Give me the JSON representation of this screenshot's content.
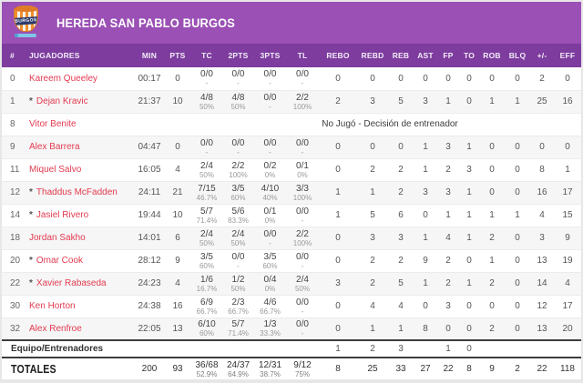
{
  "header": {
    "team_name": "HEREDA SAN PABLO BURGOS",
    "logo_text": "BURGOS",
    "banner_color": "#9b50b5",
    "header_row_color": "#7d3c9e",
    "player_link_color": "#e23a50"
  },
  "table": {
    "columns": [
      "#",
      "JUGADORES",
      "MIN",
      "PTS",
      "TC",
      "2PTS",
      "3PTS",
      "TL",
      "REBO",
      "REBD",
      "REB",
      "AST",
      "FP",
      "TO",
      "ROB",
      "BLQ",
      "+/-",
      "EFF"
    ],
    "players": [
      {
        "number": "0",
        "starter": false,
        "name": "Kareem Queeley",
        "min": "00:17",
        "pts": "0",
        "tc": "0/0",
        "tc_pct": "-",
        "p2": "0/0",
        "p2_pct": "-",
        "p3": "0/0",
        "p3_pct": "-",
        "tl": "0/0",
        "tl_pct": "-",
        "rebo": "0",
        "rebd": "0",
        "reb": "0",
        "ast": "0",
        "fp": "0",
        "to": "0",
        "rob": "0",
        "blq": "0",
        "pm": "2",
        "eff": "0"
      },
      {
        "number": "1",
        "starter": true,
        "name": "Dejan Kravic",
        "min": "21:37",
        "pts": "10",
        "tc": "4/8",
        "tc_pct": "50%",
        "p2": "4/8",
        "p2_pct": "50%",
        "p3": "0/0",
        "p3_pct": "-",
        "tl": "2/2",
        "tl_pct": "100%",
        "rebo": "2",
        "rebd": "3",
        "reb": "5",
        "ast": "3",
        "fp": "1",
        "to": "0",
        "rob": "1",
        "blq": "1",
        "pm": "25",
        "eff": "16"
      },
      {
        "number": "8",
        "starter": false,
        "name": "Vitor Benite",
        "dnp": "No Jugó - Decisión de entrenador"
      },
      {
        "number": "9",
        "starter": false,
        "name": "Alex Barrera",
        "min": "04:47",
        "pts": "0",
        "tc": "0/0",
        "tc_pct": "-",
        "p2": "0/0",
        "p2_pct": "-",
        "p3": "0/0",
        "p3_pct": "-",
        "tl": "0/0",
        "tl_pct": "-",
        "rebo": "0",
        "rebd": "0",
        "reb": "0",
        "ast": "1",
        "fp": "3",
        "to": "1",
        "rob": "0",
        "blq": "0",
        "pm": "0",
        "eff": "0"
      },
      {
        "number": "11",
        "starter": false,
        "name": "Miquel Salvo",
        "min": "16:05",
        "pts": "4",
        "tc": "2/4",
        "tc_pct": "50%",
        "p2": "2/2",
        "p2_pct": "100%",
        "p3": "0/2",
        "p3_pct": "0%",
        "tl": "0/1",
        "tl_pct": "0%",
        "rebo": "0",
        "rebd": "2",
        "reb": "2",
        "ast": "1",
        "fp": "2",
        "to": "3",
        "rob": "0",
        "blq": "0",
        "pm": "8",
        "eff": "1"
      },
      {
        "number": "12",
        "starter": true,
        "name": "Thaddus McFadden",
        "min": "24:11",
        "pts": "21",
        "tc": "7/15",
        "tc_pct": "46.7%",
        "p2": "3/5",
        "p2_pct": "60%",
        "p3": "4/10",
        "p3_pct": "40%",
        "tl": "3/3",
        "tl_pct": "100%",
        "rebo": "1",
        "rebd": "1",
        "reb": "2",
        "ast": "3",
        "fp": "3",
        "to": "1",
        "rob": "0",
        "blq": "0",
        "pm": "16",
        "eff": "17"
      },
      {
        "number": "14",
        "starter": true,
        "name": "Jasiel Rivero",
        "min": "19:44",
        "pts": "10",
        "tc": "5/7",
        "tc_pct": "71.4%",
        "p2": "5/6",
        "p2_pct": "83.3%",
        "p3": "0/1",
        "p3_pct": "0%",
        "tl": "0/0",
        "tl_pct": "-",
        "rebo": "1",
        "rebd": "5",
        "reb": "6",
        "ast": "0",
        "fp": "1",
        "to": "1",
        "rob": "1",
        "blq": "1",
        "pm": "4",
        "eff": "15"
      },
      {
        "number": "18",
        "starter": false,
        "name": "Jordan Sakho",
        "min": "14:01",
        "pts": "6",
        "tc": "2/4",
        "tc_pct": "50%",
        "p2": "2/4",
        "p2_pct": "50%",
        "p3": "0/0",
        "p3_pct": "-",
        "tl": "2/2",
        "tl_pct": "100%",
        "rebo": "0",
        "rebd": "3",
        "reb": "3",
        "ast": "1",
        "fp": "4",
        "to": "1",
        "rob": "2",
        "blq": "0",
        "pm": "3",
        "eff": "9"
      },
      {
        "number": "20",
        "starter": true,
        "name": "Omar Cook",
        "min": "28:12",
        "pts": "9",
        "tc": "3/5",
        "tc_pct": "60%",
        "p2": "0/0",
        "p2_pct": "-",
        "p3": "3/5",
        "p3_pct": "60%",
        "tl": "0/0",
        "tl_pct": "-",
        "rebo": "0",
        "rebd": "2",
        "reb": "2",
        "ast": "9",
        "fp": "2",
        "to": "0",
        "rob": "1",
        "blq": "0",
        "pm": "13",
        "eff": "19"
      },
      {
        "number": "22",
        "starter": true,
        "name": "Xavier Rabaseda",
        "min": "24:23",
        "pts": "4",
        "tc": "1/6",
        "tc_pct": "16.7%",
        "p2": "1/2",
        "p2_pct": "50%",
        "p3": "0/4",
        "p3_pct": "0%",
        "tl": "2/4",
        "tl_pct": "50%",
        "rebo": "3",
        "rebd": "2",
        "reb": "5",
        "ast": "1",
        "fp": "2",
        "to": "1",
        "rob": "2",
        "blq": "0",
        "pm": "14",
        "eff": "4"
      },
      {
        "number": "30",
        "starter": false,
        "name": "Ken Horton",
        "min": "24:38",
        "pts": "16",
        "tc": "6/9",
        "tc_pct": "66.7%",
        "p2": "2/3",
        "p2_pct": "66.7%",
        "p3": "4/6",
        "p3_pct": "66.7%",
        "tl": "0/0",
        "tl_pct": "-",
        "rebo": "0",
        "rebd": "4",
        "reb": "4",
        "ast": "0",
        "fp": "3",
        "to": "0",
        "rob": "0",
        "blq": "0",
        "pm": "12",
        "eff": "17"
      },
      {
        "number": "32",
        "starter": false,
        "name": "Alex Renfroe",
        "min": "22:05",
        "pts": "13",
        "tc": "6/10",
        "tc_pct": "60%",
        "p2": "5/7",
        "p2_pct": "71.4%",
        "p3": "1/3",
        "p3_pct": "33.3%",
        "tl": "0/0",
        "tl_pct": "-",
        "rebo": "0",
        "rebd": "1",
        "reb": "1",
        "ast": "8",
        "fp": "0",
        "to": "0",
        "rob": "2",
        "blq": "0",
        "pm": "13",
        "eff": "20"
      }
    ],
    "team_row": {
      "label": "Equipo/Entrenadores",
      "rebo": "1",
      "rebd": "2",
      "reb": "3",
      "fp": "1",
      "to": "0"
    },
    "totals": {
      "label": "TOTALES",
      "min": "200",
      "pts": "93",
      "tc": "36/68",
      "tc_pct": "52.9%",
      "p2": "24/37",
      "p2_pct": "64.9%",
      "p3": "12/31",
      "p3_pct": "38.7%",
      "tl": "9/12",
      "tl_pct": "75%",
      "rebo": "8",
      "rebd": "25",
      "reb": "33",
      "ast": "27",
      "fp": "22",
      "to": "8",
      "rob": "9",
      "blq": "2",
      "pm": "22",
      "eff": "118"
    }
  }
}
